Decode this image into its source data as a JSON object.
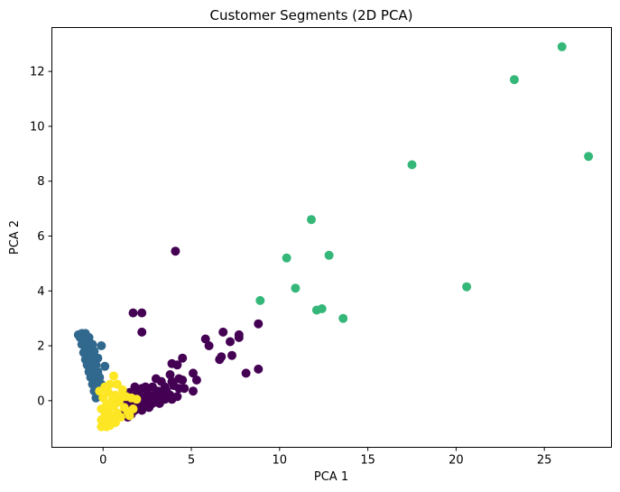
{
  "chart_data": {
    "type": "scatter",
    "title": "Customer Segments (2D PCA)",
    "xlabel": "PCA 1",
    "ylabel": "PCA 2",
    "xlim": [
      -2.9,
      28.8
    ],
    "ylim": [
      -1.7,
      13.6
    ],
    "xticks": [
      0,
      5,
      10,
      15,
      20,
      25
    ],
    "yticks": [
      0,
      2,
      4,
      6,
      8,
      10,
      12
    ],
    "grid": false,
    "legend": "none",
    "series": [
      {
        "color": "#440154",
        "points": [
          [
            4.1,
            5.45
          ],
          [
            1.7,
            3.2
          ],
          [
            2.2,
            3.2
          ],
          [
            2.2,
            2.5
          ],
          [
            8.8,
            2.8
          ],
          [
            6.8,
            2.5
          ],
          [
            7.7,
            2.4
          ],
          [
            7.7,
            2.3
          ],
          [
            5.8,
            2.25
          ],
          [
            7.2,
            2.15
          ],
          [
            6.0,
            2.0
          ],
          [
            6.7,
            1.6
          ],
          [
            6.6,
            1.5
          ],
          [
            7.3,
            1.65
          ],
          [
            4.5,
            1.55
          ],
          [
            4.2,
            1.3
          ],
          [
            3.9,
            1.35
          ],
          [
            8.8,
            1.15
          ],
          [
            8.1,
            1.0
          ],
          [
            5.1,
            1.0
          ],
          [
            3.8,
            0.95
          ],
          [
            5.3,
            0.75
          ],
          [
            4.3,
            0.8
          ],
          [
            4.5,
            0.75
          ],
          [
            3.0,
            0.8
          ],
          [
            3.3,
            0.7
          ],
          [
            2.4,
            0.5
          ],
          [
            2.8,
            0.5
          ],
          [
            3.9,
            0.7
          ],
          [
            4.0,
            0.55
          ],
          [
            4.6,
            0.45
          ],
          [
            5.1,
            0.35
          ],
          [
            3.5,
            0.5
          ],
          [
            4.3,
            0.45
          ],
          [
            3.6,
            0.35
          ],
          [
            1.8,
            0.5
          ],
          [
            2.2,
            0.45
          ],
          [
            3.1,
            0.35
          ],
          [
            2.0,
            0.3
          ],
          [
            2.5,
            0.3
          ],
          [
            2.9,
            0.2
          ],
          [
            3.4,
            0.25
          ],
          [
            3.8,
            0.2
          ],
          [
            4.2,
            0.15
          ],
          [
            1.5,
            0.3
          ],
          [
            1.8,
            0.1
          ],
          [
            2.3,
            0.1
          ],
          [
            2.7,
            0.05
          ],
          [
            3.1,
            0.05
          ],
          [
            3.5,
            0.05
          ],
          [
            3.9,
            0.05
          ],
          [
            1.5,
            0.0
          ],
          [
            1.9,
            -0.05
          ],
          [
            2.4,
            -0.05
          ],
          [
            2.8,
            -0.1
          ],
          [
            3.2,
            -0.1
          ],
          [
            1.3,
            -0.1
          ],
          [
            1.7,
            -0.2
          ],
          [
            2.1,
            -0.2
          ],
          [
            2.6,
            -0.25
          ],
          [
            1.4,
            -0.3
          ],
          [
            1.8,
            -0.35
          ],
          [
            2.2,
            -0.35
          ],
          [
            1.2,
            -0.45
          ],
          [
            1.6,
            -0.5
          ],
          [
            1.4,
            -0.6
          ]
        ]
      },
      {
        "color": "#31688e",
        "points": [
          [
            -1.4,
            2.4
          ],
          [
            -1.2,
            2.45
          ],
          [
            -1.0,
            2.45
          ],
          [
            -0.8,
            2.3
          ],
          [
            -1.3,
            2.3
          ],
          [
            -1.1,
            2.2
          ],
          [
            -0.9,
            2.15
          ],
          [
            -0.6,
            2.05
          ],
          [
            -0.1,
            2.0
          ],
          [
            -1.2,
            2.05
          ],
          [
            -1.0,
            1.95
          ],
          [
            -0.8,
            1.85
          ],
          [
            -0.5,
            1.8
          ],
          [
            -1.1,
            1.75
          ],
          [
            -0.9,
            1.65
          ],
          [
            -0.7,
            1.6
          ],
          [
            -0.3,
            1.55
          ],
          [
            -1.0,
            1.5
          ],
          [
            -0.8,
            1.4
          ],
          [
            -0.6,
            1.35
          ],
          [
            -0.4,
            1.3
          ],
          [
            0.1,
            1.25
          ],
          [
            -0.9,
            1.3
          ],
          [
            -0.7,
            1.2
          ],
          [
            -0.5,
            1.15
          ],
          [
            -0.3,
            1.05
          ],
          [
            -0.8,
            1.05
          ],
          [
            -0.6,
            0.95
          ],
          [
            -0.4,
            0.9
          ],
          [
            -0.2,
            0.85
          ],
          [
            -0.7,
            0.85
          ],
          [
            -0.5,
            0.75
          ],
          [
            -0.3,
            0.65
          ],
          [
            -0.1,
            0.6
          ],
          [
            -0.6,
            0.6
          ],
          [
            -0.4,
            0.5
          ],
          [
            -0.2,
            0.4
          ],
          [
            -0.5,
            0.35
          ],
          [
            -0.3,
            0.2
          ],
          [
            -0.4,
            0.1
          ]
        ]
      },
      {
        "color": "#35b779",
        "points": [
          [
            26.0,
            12.9
          ],
          [
            23.3,
            11.7
          ],
          [
            27.5,
            8.9
          ],
          [
            17.5,
            8.6
          ],
          [
            11.8,
            6.6
          ],
          [
            12.8,
            5.3
          ],
          [
            10.4,
            5.2
          ],
          [
            20.6,
            4.15
          ],
          [
            10.9,
            4.1
          ],
          [
            8.9,
            3.65
          ],
          [
            12.1,
            3.3
          ],
          [
            12.4,
            3.35
          ],
          [
            13.6,
            3.0
          ]
        ]
      },
      {
        "color": "#fde725",
        "points": [
          [
            -0.2,
            0.35
          ],
          [
            0.1,
            0.5
          ],
          [
            0.4,
            0.6
          ],
          [
            0.6,
            0.9
          ],
          [
            0.8,
            0.6
          ],
          [
            1.1,
            0.4
          ],
          [
            0.3,
            0.3
          ],
          [
            0.7,
            0.2
          ],
          [
            1.3,
            0.15
          ],
          [
            1.0,
            0.1
          ],
          [
            0.0,
            0.1
          ],
          [
            0.5,
            0.0
          ],
          [
            0.9,
            -0.05
          ],
          [
            1.6,
            0.1
          ],
          [
            0.2,
            -0.15
          ],
          [
            0.6,
            -0.2
          ],
          [
            1.2,
            -0.25
          ],
          [
            -0.1,
            -0.3
          ],
          [
            0.3,
            -0.4
          ],
          [
            0.8,
            -0.45
          ],
          [
            1.4,
            -0.4
          ],
          [
            0.1,
            -0.55
          ],
          [
            0.5,
            -0.6
          ],
          [
            1.0,
            -0.6
          ],
          [
            -0.1,
            -0.7
          ],
          [
            0.3,
            -0.75
          ],
          [
            0.7,
            -0.8
          ],
          [
            0.0,
            -0.85
          ],
          [
            0.4,
            -0.9
          ],
          [
            -0.1,
            -0.95
          ],
          [
            0.2,
            -0.95
          ],
          [
            1.7,
            -0.3
          ],
          [
            1.9,
            0.05
          ],
          [
            1.5,
            -0.55
          ]
        ]
      }
    ]
  }
}
